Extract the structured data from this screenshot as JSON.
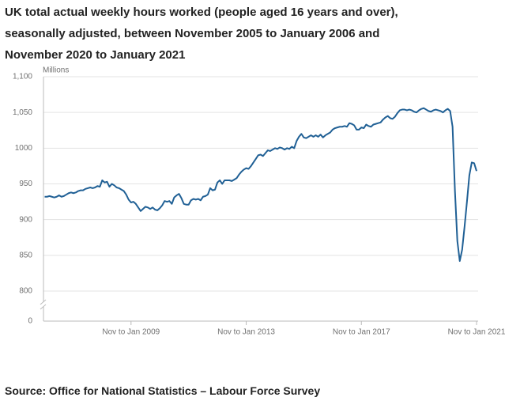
{
  "chart_data": {
    "type": "line",
    "title": "UK total actual weekly hours worked (people aged 16 years and over), seasonally adjusted, between November 2005 to January 2006 and November 2020 to January 2021",
    "y_axis_label": "Millions",
    "source": "Source: Office for National Statistics – Labour Force Survey",
    "color": "#206095",
    "y_break": true,
    "grid": true,
    "ylim": [
      0,
      1100
    ],
    "yticks": [
      0,
      800,
      850,
      900,
      950,
      1000,
      {
        "value": 1050,
        "label": "1,050"
      },
      {
        "value": 1100,
        "label": "1,100"
      }
    ],
    "categories": [
      null,
      null,
      null,
      null,
      null,
      null,
      null,
      null,
      null,
      null,
      null,
      null,
      null,
      null,
      null,
      null,
      null,
      null,
      null,
      null,
      null,
      null,
      null,
      null,
      null,
      null,
      null,
      null,
      null,
      null,
      null,
      null,
      null,
      null,
      null,
      null,
      "Nov to Jan 2009",
      null,
      null,
      null,
      null,
      null,
      null,
      null,
      null,
      null,
      null,
      null,
      null,
      null,
      null,
      null,
      null,
      null,
      null,
      null,
      null,
      null,
      null,
      null,
      null,
      null,
      null,
      null,
      null,
      null,
      null,
      null,
      null,
      null,
      null,
      null,
      null,
      null,
      null,
      null,
      null,
      null,
      null,
      null,
      null,
      null,
      null,
      null,
      "Nov to Jan 2013",
      null,
      null,
      null,
      null,
      null,
      null,
      null,
      null,
      null,
      null,
      null,
      null,
      null,
      null,
      null,
      null,
      null,
      null,
      null,
      null,
      null,
      null,
      null,
      null,
      null,
      null,
      null,
      null,
      null,
      null,
      null,
      null,
      null,
      null,
      null,
      null,
      null,
      null,
      null,
      null,
      null,
      null,
      null,
      null,
      null,
      null,
      null,
      "Nov to Jan 2017",
      null,
      null,
      null,
      null,
      null,
      null,
      null,
      null,
      null,
      null,
      null,
      null,
      null,
      null,
      null,
      null,
      null,
      null,
      null,
      null,
      null,
      null,
      null,
      null,
      null,
      null,
      null,
      null,
      null,
      null,
      null,
      null,
      null,
      null,
      null,
      null,
      null,
      null,
      null,
      null,
      null,
      null,
      null,
      null,
      null,
      null,
      null,
      "Nov to Jan 2021"
    ],
    "values": [
      932,
      932,
      933,
      932,
      931,
      932,
      934,
      932,
      933,
      935,
      937,
      938,
      937,
      938,
      940,
      941,
      941,
      943,
      944,
      945,
      944,
      945,
      947,
      946,
      955,
      952,
      953,
      946,
      950,
      948,
      945,
      944,
      942,
      940,
      935,
      928,
      924,
      925,
      922,
      917,
      912,
      915,
      918,
      917,
      915,
      917,
      914,
      913,
      916,
      920,
      926,
      925,
      926,
      922,
      931,
      934,
      936,
      930,
      922,
      921,
      921,
      927,
      929,
      928,
      929,
      927,
      932,
      933,
      935,
      944,
      941,
      942,
      952,
      955,
      950,
      955,
      955,
      955,
      954,
      956,
      958,
      963,
      967,
      970,
      972,
      971,
      975,
      980,
      985,
      990,
      991,
      989,
      993,
      997,
      996,
      998,
      1000,
      999,
      1001,
      1000,
      998,
      1000,
      999,
      1002,
      1000,
      1010,
      1016,
      1020,
      1015,
      1014,
      1016,
      1018,
      1016,
      1018,
      1016,
      1019,
      1015,
      1018,
      1020,
      1022,
      1026,
      1028,
      1029,
      1030,
      1030,
      1031,
      1030,
      1035,
      1034,
      1032,
      1026,
      1026,
      1029,
      1028,
      1033,
      1031,
      1030,
      1033,
      1034,
      1035,
      1036,
      1040,
      1043,
      1045,
      1042,
      1041,
      1044,
      1049,
      1053,
      1054,
      1054,
      1053,
      1054,
      1053,
      1051,
      1050,
      1053,
      1055,
      1056,
      1054,
      1052,
      1051,
      1053,
      1054,
      1053,
      1052,
      1050,
      1053,
      1055,
      1052,
      1030,
      940,
      870,
      842,
      858,
      890,
      925,
      962,
      980,
      979,
      968
    ]
  }
}
